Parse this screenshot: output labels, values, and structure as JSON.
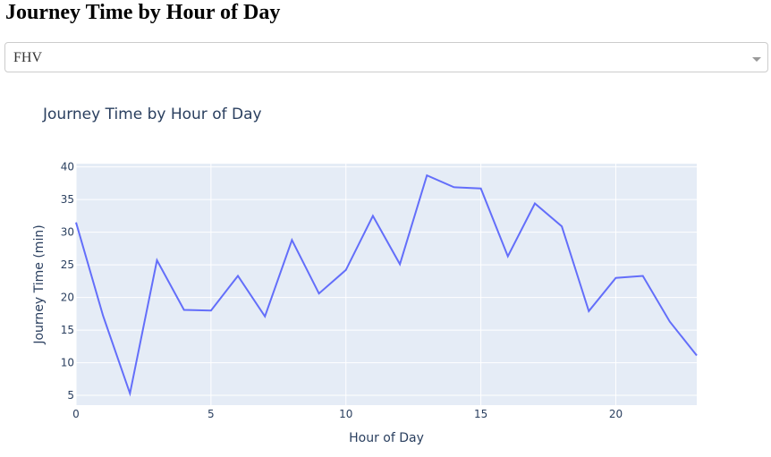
{
  "heading": "Journey Time by Hour of Day",
  "dropdown": {
    "selected": "FHV",
    "arrow_icon": "caret-down-icon"
  },
  "colors": {
    "plot_bg": "#e5ecf6",
    "grid": "#ffffff",
    "line": "#636efa",
    "text": "#2a3f5f"
  },
  "chart_data": {
    "type": "line",
    "title": "Journey Time by Hour of Day",
    "xlabel": "Hour of Day",
    "ylabel": "Journey Time (min)",
    "xlim": [
      0,
      23
    ],
    "ylim": [
      3.5,
      40.5
    ],
    "xticks": [
      0,
      5,
      10,
      15,
      20
    ],
    "yticks": [
      5,
      10,
      15,
      20,
      25,
      30,
      35,
      40
    ],
    "grid": true,
    "series": [
      {
        "x": [
          0,
          1,
          2,
          3,
          4,
          5,
          6,
          7,
          8,
          9,
          10,
          11,
          12,
          13,
          14,
          15,
          16,
          17,
          18,
          19,
          20,
          21,
          22,
          23
        ],
        "values": [
          31.5,
          17.2,
          5.3,
          25.7,
          18.1,
          18.0,
          23.3,
          17.1,
          28.8,
          20.6,
          24.2,
          32.5,
          25.1,
          38.7,
          36.9,
          36.7,
          26.3,
          34.4,
          30.9,
          17.9,
          23.0,
          23.3,
          16.3,
          11.1
        ]
      }
    ]
  }
}
